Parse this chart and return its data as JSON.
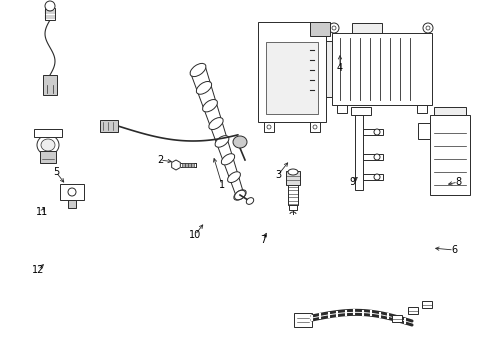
{
  "background_color": "#ffffff",
  "line_color": "#2a2a2a",
  "label_color": "#000000",
  "figsize": [
    4.89,
    3.6
  ],
  "dpi": 100
}
